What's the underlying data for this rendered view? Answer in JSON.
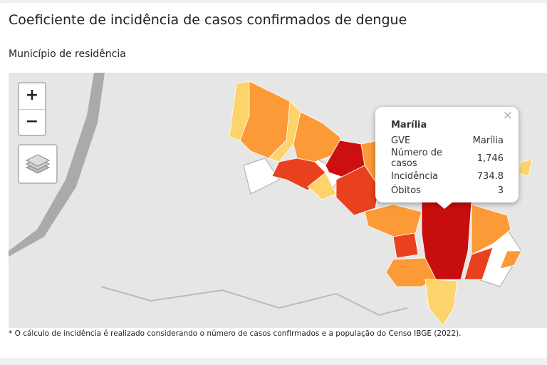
{
  "header": {
    "title": "Coeficiente de incidência de casos confirmados de dengue",
    "subtitle": "Município de residência"
  },
  "map_controls": {
    "zoom_in": "+",
    "zoom_out": "−"
  },
  "tooltip": {
    "close": "×",
    "title": "Marília",
    "rows": [
      [
        "GVE",
        "Marília"
      ],
      [
        "Número de casos",
        "1,746"
      ],
      [
        "Incidência",
        "734.8"
      ],
      [
        "Óbitos",
        "3"
      ]
    ]
  },
  "footnote": "* O cálculo de incidência é realizado considerando o número de casos confirmados e a população do Censo IBGE (2022)."
}
